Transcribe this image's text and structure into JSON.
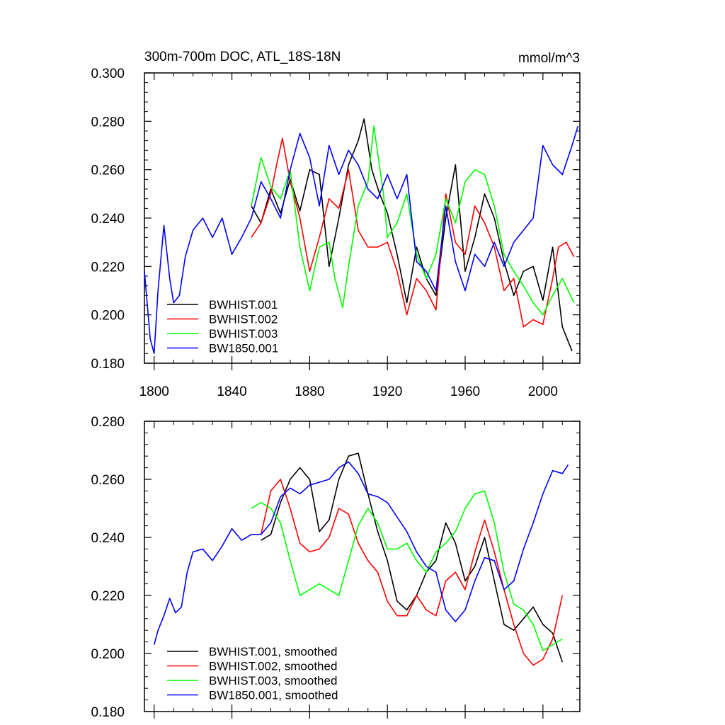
{
  "chart_data": [
    {
      "type": "line",
      "title": "300m-700m DOC, ATL_18S-18N",
      "units": "mmol/m^3",
      "xlabel": "",
      "ylabel": "",
      "xlim": [
        1795,
        2019
      ],
      "ylim": [
        0.18,
        0.3
      ],
      "xticks": [
        1800,
        1840,
        1880,
        1920,
        1960,
        2000
      ],
      "yticks": [
        0.18,
        0.2,
        0.22,
        0.24,
        0.26,
        0.28,
        0.3
      ],
      "ytick_labels": [
        "0.180",
        "0.200",
        "0.220",
        "0.240",
        "0.260",
        "0.280",
        "0.300"
      ],
      "legend_position": "bottom-left",
      "series": [
        {
          "name": "BWHIST.001",
          "color": "#000000",
          "x": [
            1850,
            1855,
            1860,
            1865,
            1870,
            1875,
            1880,
            1885,
            1890,
            1895,
            1900,
            1905,
            1908,
            1912,
            1916,
            1920,
            1925,
            1930,
            1935,
            1940,
            1945,
            1950,
            1955,
            1960,
            1965,
            1970,
            1975,
            1980,
            1985,
            1990,
            1995,
            2000,
            2005,
            2010,
            2015
          ],
          "values": [
            0.245,
            0.238,
            0.252,
            0.242,
            0.256,
            0.243,
            0.26,
            0.258,
            0.22,
            0.24,
            0.262,
            0.272,
            0.281,
            0.26,
            0.25,
            0.242,
            0.225,
            0.205,
            0.228,
            0.215,
            0.208,
            0.24,
            0.262,
            0.218,
            0.232,
            0.25,
            0.24,
            0.222,
            0.208,
            0.218,
            0.22,
            0.206,
            0.228,
            0.195,
            0.185
          ]
        },
        {
          "name": "BWHIST.002",
          "color": "#ff0000",
          "x": [
            1850,
            1855,
            1860,
            1863,
            1866,
            1870,
            1875,
            1880,
            1885,
            1890,
            1895,
            1900,
            1905,
            1910,
            1915,
            1920,
            1925,
            1930,
            1935,
            1940,
            1945,
            1950,
            1955,
            1960,
            1965,
            1970,
            1975,
            1980,
            1985,
            1990,
            1995,
            2000,
            2005,
            2008,
            2012,
            2016
          ],
          "values": [
            0.232,
            0.238,
            0.25,
            0.262,
            0.273,
            0.255,
            0.24,
            0.218,
            0.232,
            0.248,
            0.244,
            0.26,
            0.235,
            0.228,
            0.228,
            0.23,
            0.218,
            0.2,
            0.215,
            0.21,
            0.202,
            0.25,
            0.23,
            0.225,
            0.245,
            0.238,
            0.228,
            0.21,
            0.215,
            0.195,
            0.198,
            0.196,
            0.215,
            0.228,
            0.23,
            0.224
          ]
        },
        {
          "name": "BWHIST.003",
          "color": "#00ff00",
          "x": [
            1850,
            1855,
            1860,
            1865,
            1870,
            1875,
            1880,
            1885,
            1890,
            1893,
            1897,
            1900,
            1905,
            1910,
            1913,
            1918,
            1920,
            1925,
            1930,
            1935,
            1940,
            1945,
            1950,
            1955,
            1960,
            1965,
            1970,
            1975,
            1980,
            1985,
            1990,
            1995,
            2000,
            2005,
            2010,
            2013,
            2016
          ],
          "values": [
            0.245,
            0.265,
            0.253,
            0.248,
            0.26,
            0.228,
            0.21,
            0.228,
            0.23,
            0.215,
            0.203,
            0.22,
            0.245,
            0.255,
            0.278,
            0.25,
            0.232,
            0.238,
            0.25,
            0.225,
            0.215,
            0.225,
            0.248,
            0.238,
            0.255,
            0.26,
            0.258,
            0.245,
            0.225,
            0.218,
            0.212,
            0.205,
            0.2,
            0.208,
            0.215,
            0.21,
            0.205
          ]
        },
        {
          "name": "BW1850.001",
          "color": "#0000ff",
          "x": [
            1795,
            1798,
            1800,
            1802,
            1805,
            1808,
            1810,
            1813,
            1816,
            1820,
            1825,
            1830,
            1835,
            1840,
            1845,
            1850,
            1855,
            1860,
            1865,
            1870,
            1875,
            1880,
            1885,
            1890,
            1895,
            1900,
            1905,
            1910,
            1915,
            1920,
            1925,
            1930,
            1935,
            1940,
            1945,
            1950,
            1955,
            1960,
            1965,
            1970,
            1975,
            1980,
            1985,
            1990,
            1995,
            2000,
            2005,
            2010,
            2015,
            2018
          ],
          "values": [
            0.218,
            0.19,
            0.184,
            0.21,
            0.237,
            0.215,
            0.205,
            0.208,
            0.224,
            0.235,
            0.24,
            0.232,
            0.24,
            0.225,
            0.232,
            0.24,
            0.255,
            0.248,
            0.24,
            0.26,
            0.275,
            0.265,
            0.245,
            0.27,
            0.258,
            0.268,
            0.262,
            0.252,
            0.248,
            0.258,
            0.248,
            0.258,
            0.222,
            0.218,
            0.21,
            0.245,
            0.222,
            0.21,
            0.225,
            0.22,
            0.23,
            0.22,
            0.23,
            0.235,
            0.24,
            0.27,
            0.262,
            0.258,
            0.27,
            0.278
          ]
        }
      ]
    },
    {
      "type": "line",
      "title": "",
      "xlabel": "",
      "ylabel": "",
      "xlim": [
        1795,
        2019
      ],
      "ylim": [
        0.18,
        0.28
      ],
      "xticks": [
        1800,
        1840,
        1880,
        1920,
        1960,
        2000
      ],
      "yticks": [
        0.18,
        0.2,
        0.22,
        0.24,
        0.26,
        0.28
      ],
      "ytick_labels": [
        "0.180",
        "0.200",
        "0.220",
        "0.240",
        "0.260",
        "0.280"
      ],
      "legend_position": "bottom-left",
      "series": [
        {
          "name": "BWHIST.001, smoothed",
          "color": "#000000",
          "x": [
            1855,
            1860,
            1865,
            1870,
            1875,
            1880,
            1885,
            1890,
            1895,
            1900,
            1905,
            1910,
            1915,
            1920,
            1925,
            1930,
            1935,
            1940,
            1945,
            1950,
            1955,
            1960,
            1965,
            1970,
            1975,
            1980,
            1985,
            1990,
            1995,
            2000,
            2005,
            2010
          ],
          "values": [
            0.239,
            0.241,
            0.252,
            0.26,
            0.264,
            0.26,
            0.242,
            0.246,
            0.26,
            0.268,
            0.269,
            0.255,
            0.242,
            0.232,
            0.218,
            0.215,
            0.22,
            0.228,
            0.232,
            0.245,
            0.238,
            0.225,
            0.23,
            0.24,
            0.225,
            0.21,
            0.208,
            0.212,
            0.216,
            0.21,
            0.207,
            0.197
          ]
        },
        {
          "name": "BWHIST.002, smoothed",
          "color": "#ff0000",
          "x": [
            1855,
            1860,
            1865,
            1870,
            1875,
            1880,
            1885,
            1890,
            1895,
            1900,
            1905,
            1910,
            1915,
            1920,
            1925,
            1930,
            1935,
            1940,
            1945,
            1950,
            1955,
            1960,
            1965,
            1970,
            1975,
            1980,
            1985,
            1990,
            1995,
            2000,
            2005,
            2010
          ],
          "values": [
            0.241,
            0.256,
            0.26,
            0.25,
            0.238,
            0.235,
            0.236,
            0.24,
            0.25,
            0.248,
            0.238,
            0.232,
            0.228,
            0.218,
            0.213,
            0.213,
            0.22,
            0.215,
            0.213,
            0.225,
            0.228,
            0.222,
            0.235,
            0.246,
            0.235,
            0.222,
            0.21,
            0.2,
            0.196,
            0.198,
            0.205,
            0.22
          ]
        },
        {
          "name": "BWHIST.003, smoothed",
          "color": "#00ff00",
          "x": [
            1850,
            1855,
            1860,
            1865,
            1870,
            1875,
            1880,
            1885,
            1890,
            1895,
            1900,
            1905,
            1910,
            1915,
            1920,
            1925,
            1930,
            1935,
            1940,
            1945,
            1950,
            1955,
            1960,
            1965,
            1970,
            1975,
            1980,
            1985,
            1990,
            1995,
            2000,
            2005,
            2010
          ],
          "values": [
            0.25,
            0.252,
            0.25,
            0.245,
            0.232,
            0.22,
            0.222,
            0.224,
            0.222,
            0.22,
            0.232,
            0.244,
            0.25,
            0.245,
            0.236,
            0.236,
            0.238,
            0.232,
            0.228,
            0.235,
            0.238,
            0.242,
            0.25,
            0.255,
            0.256,
            0.245,
            0.228,
            0.217,
            0.215,
            0.21,
            0.201,
            0.203,
            0.205
          ]
        },
        {
          "name": "BW1850.001, smoothed",
          "color": "#0000ff",
          "x": [
            1800,
            1802,
            1805,
            1808,
            1811,
            1814,
            1817,
            1820,
            1825,
            1830,
            1835,
            1840,
            1845,
            1850,
            1855,
            1860,
            1865,
            1870,
            1875,
            1880,
            1885,
            1890,
            1895,
            1900,
            1905,
            1910,
            1915,
            1920,
            1925,
            1930,
            1935,
            1940,
            1945,
            1950,
            1955,
            1960,
            1965,
            1970,
            1975,
            1980,
            1985,
            1990,
            1995,
            2000,
            2005,
            2010,
            2013
          ],
          "values": [
            0.203,
            0.208,
            0.213,
            0.219,
            0.214,
            0.216,
            0.228,
            0.235,
            0.236,
            0.232,
            0.237,
            0.243,
            0.239,
            0.241,
            0.241,
            0.245,
            0.254,
            0.257,
            0.255,
            0.258,
            0.259,
            0.26,
            0.264,
            0.266,
            0.262,
            0.255,
            0.254,
            0.252,
            0.247,
            0.242,
            0.235,
            0.23,
            0.228,
            0.215,
            0.211,
            0.215,
            0.225,
            0.233,
            0.232,
            0.222,
            0.225,
            0.236,
            0.245,
            0.255,
            0.263,
            0.262,
            0.265
          ]
        }
      ]
    }
  ]
}
